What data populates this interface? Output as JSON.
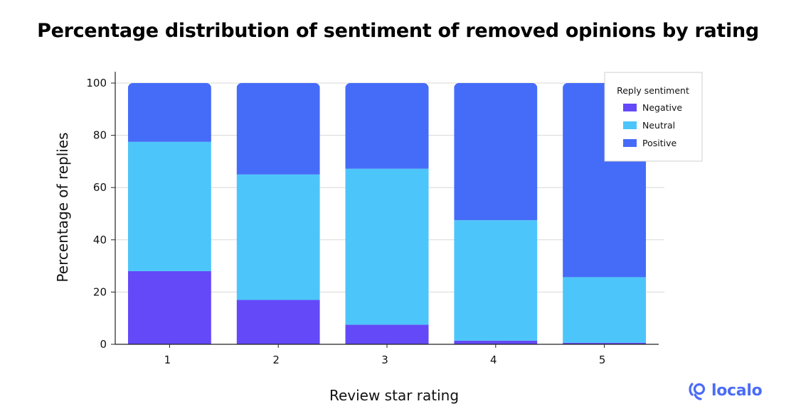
{
  "chart_data": {
    "type": "bar",
    "stacked": true,
    "title": "Percentage distribution of sentiment of removed opinions by rating",
    "xlabel": "Review star rating",
    "ylabel": "Percentage of replies",
    "categories": [
      "1",
      "2",
      "3",
      "4",
      "5"
    ],
    "ylim": [
      0,
      100
    ],
    "yticks": [
      "0",
      "20",
      "40",
      "60",
      "80",
      "100"
    ],
    "grid": true,
    "legend": {
      "title": "Reply sentiment",
      "placement": "top-right"
    },
    "series": [
      {
        "name": "Negative",
        "color": "#6449f8",
        "values": [
          28,
          17,
          7.5,
          1.4,
          0.6
        ]
      },
      {
        "name": "Neutral",
        "color": "#4cc6fa",
        "values": [
          49.5,
          48,
          59.7,
          46.1,
          25.1
        ]
      },
      {
        "name": "Positive",
        "color": "#456cf8",
        "values": [
          22.5,
          35,
          32.8,
          52.5,
          74.3
        ]
      }
    ]
  },
  "brand": {
    "name": "localo",
    "color": "#4a6cf7",
    "icon": "localo-pin-logo-icon"
  }
}
